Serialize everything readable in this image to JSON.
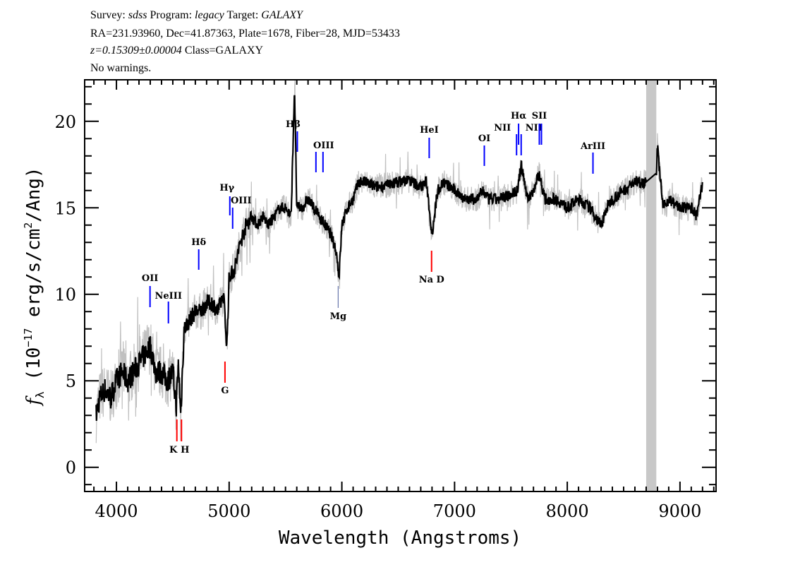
{
  "header": {
    "line1": {
      "survey_label": "Survey: ",
      "survey": "sdss",
      "program_label": " Program: ",
      "program": "legacy",
      "target_label": " Target: ",
      "target": "GALAXY"
    },
    "line2": "RA=231.93960, Dec=41.87363, Plate=1678, Fiber=28, MJD=53433",
    "line3": {
      "redshift": "z=0.15309±0.00004",
      "class": " Class=GALAXY"
    },
    "line4": "No warnings."
  },
  "chart_data": {
    "type": "line",
    "xlabel": "Wavelength (Angstroms)",
    "ylabel": "f_λ (10^-17 erg/s/cm^2/Ang)",
    "ylabel_parts": {
      "f": "f",
      "sub": "λ",
      "pre": " (10",
      "exp": "−17",
      "mid": " erg/s/cm",
      "exp2": "2",
      "post": "/Ang)"
    },
    "xlim": [
      3718,
      9320
    ],
    "ylim": [
      -1.4,
      22.4
    ],
    "xticks": [
      "4000",
      "5000",
      "6000",
      "7000",
      "8000",
      "9000"
    ],
    "yticks": [
      "0",
      "5",
      "10",
      "15",
      "20"
    ],
    "grid": false,
    "colors": {
      "spectrum": "#000000",
      "raw_flux": "#c0c0c0",
      "emission_marker": "#0000ff",
      "absorption_marker": "#ff0000",
      "masked_region": "#c8c8c8"
    },
    "masked_region": [
      8700,
      8790
    ],
    "spectrum": {
      "x": [
        3820,
        3850,
        3900,
        3950,
        4000,
        4050,
        4100,
        4150,
        4200,
        4250,
        4300,
        4350,
        4400,
        4450,
        4500,
        4530,
        4550,
        4570,
        4600,
        4650,
        4700,
        4750,
        4800,
        4850,
        4900,
        4950,
        4980,
        5000,
        5050,
        5100,
        5150,
        5200,
        5250,
        5300,
        5350,
        5400,
        5450,
        5500,
        5550,
        5580,
        5600,
        5650,
        5700,
        5750,
        5800,
        5850,
        5900,
        5950,
        5975,
        6000,
        6050,
        6100,
        6150,
        6200,
        6300,
        6400,
        6500,
        6600,
        6700,
        6750,
        6800,
        6850,
        6900,
        7000,
        7100,
        7200,
        7250,
        7300,
        7400,
        7500,
        7560,
        7590,
        7650,
        7700,
        7750,
        7800,
        7900,
        8000,
        8100,
        8200,
        8250,
        8300,
        8350,
        8400,
        8500,
        8600,
        8700,
        8790,
        8800,
        8850,
        8900,
        9000,
        9100,
        9150,
        9200
      ],
      "y": [
        3,
        4,
        4.5,
        4,
        5,
        5.5,
        5,
        5.5,
        6,
        6.5,
        7,
        5.5,
        5.5,
        5,
        5.5,
        3.5,
        6,
        3,
        8,
        8.5,
        9,
        9,
        9.5,
        9.5,
        9,
        10,
        7,
        11,
        11.5,
        13,
        14,
        14.5,
        14,
        14.5,
        14,
        14.5,
        15,
        15,
        14.5,
        22,
        15,
        15,
        15.5,
        15,
        14.5,
        14,
        13.5,
        12.5,
        11,
        14,
        15,
        15.5,
        16.5,
        16.5,
        16.2,
        16.3,
        16.5,
        16.6,
        16.2,
        16.5,
        13.5,
        16,
        16.5,
        16,
        15.5,
        15.5,
        16,
        15.5,
        15.5,
        15.8,
        16,
        17.5,
        15.5,
        16,
        17,
        15.5,
        15.5,
        15,
        15.5,
        15,
        14.5,
        14,
        15,
        15.5,
        16,
        16.5,
        16.5,
        17,
        18.5,
        15,
        15.5,
        15,
        15,
        14.5,
        16.5
      ]
    },
    "emission_lines": [
      {
        "label": "OII",
        "wavelength": 4298
      },
      {
        "label": "NeIII",
        "wavelength": 4461
      },
      {
        "label": "Hδ",
        "wavelength": 4730
      },
      {
        "label": "Hγ",
        "wavelength": 5006
      },
      {
        "label": "OIII",
        "wavelength": 5031
      },
      {
        "label": "Hβ",
        "wavelength": 5605
      },
      {
        "label": "OIII",
        "wavelength": 5770
      },
      {
        "label": "HeI",
        "wavelength": 6775
      },
      {
        "label": "OI",
        "wavelength": 7264
      },
      {
        "label": "NII",
        "wavelength": 7550
      },
      {
        "label": "Hα",
        "wavelength": 7568
      },
      {
        "label": "NII",
        "wavelength": 7591
      },
      {
        "label": "SII",
        "wavelength": 7752
      },
      {
        "label": "ArIII",
        "wavelength": 8228
      }
    ],
    "absorption_lines": [
      {
        "label": "K",
        "wavelength": 4536
      },
      {
        "label": "H",
        "wavelength": 4577
      },
      {
        "label": "G",
        "wavelength": 4963
      },
      {
        "label": "Mg",
        "wavelength": 5967
      },
      {
        "label": "Na D",
        "wavelength": 6796
      }
    ]
  }
}
